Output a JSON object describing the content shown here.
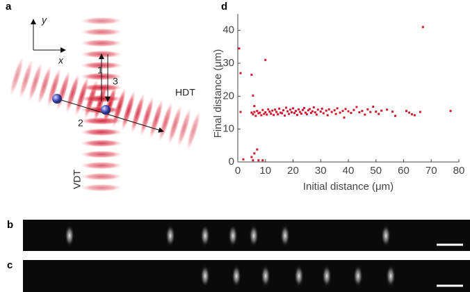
{
  "panels": {
    "a": {
      "label": "a",
      "y_axis": "y",
      "x_axis": "x",
      "arrow_1": "1",
      "arrow_2": "2",
      "arrow_3": "3",
      "horizontal_trap": "HDT",
      "vertical_trap": "VDT"
    },
    "b": {
      "label": "b"
    },
    "c": {
      "label": "c"
    },
    "d": {
      "label": "d"
    }
  },
  "chart_data": {
    "type": "scatter",
    "xlabel": "Initial distance (μm)",
    "ylabel": "Final distance (μm)",
    "color": "#d0182f",
    "x": [
      5,
      5.5,
      6,
      6.5,
      7,
      7.5,
      8,
      8.5,
      9,
      9.5,
      10,
      10.5,
      11,
      11.5,
      12,
      12.5,
      13,
      13.5,
      14,
      14.5,
      15,
      15.5,
      16,
      16.5,
      17,
      17.5,
      18,
      18.5,
      19,
      19.5,
      20,
      20.5,
      21,
      21.5,
      22,
      22.5,
      23,
      23.5,
      24,
      24.5,
      25,
      25.5,
      26,
      26.5,
      27,
      27.5,
      28,
      28.5,
      29,
      30,
      30.5,
      31,
      32,
      32.5,
      33,
      34,
      35,
      35.5,
      36,
      37,
      38,
      38.5,
      39,
      40,
      41,
      42,
      43,
      44,
      45,
      46,
      47,
      48,
      49,
      50,
      51,
      52,
      54,
      56,
      57,
      61,
      62,
      63,
      66,
      64,
      0.5,
      1,
      5,
      5.5,
      6,
      10,
      67,
      77,
      1,
      2,
      5,
      5.5,
      7,
      7.5,
      9,
      6
    ],
    "values": [
      15,
      14.5,
      15.2,
      14,
      15.5,
      14.8,
      15,
      14.2,
      15.8,
      14.6,
      15.1,
      14.4,
      16,
      15.3,
      14.7,
      15.6,
      14.3,
      15.9,
      15.2,
      14.5,
      16.2,
      15,
      14.8,
      15.7,
      14.1,
      16.5,
      15.4,
      14.6,
      15.9,
      15.1,
      16.3,
      14.9,
      15.5,
      14.3,
      16,
      15.2,
      14.7,
      15.8,
      16.4,
      15,
      14.5,
      15.7,
      16.1,
      14.9,
      15.4,
      16.6,
      15.1,
      14.4,
      15.9,
      15.3,
      16.2,
      14.8,
      15.6,
      14.2,
      16,
      15.2,
      15.7,
      14.6,
      16.3,
      15,
      15.5,
      13.5,
      16.1,
      15.4,
      14.9,
      15.8,
      16.7,
      15.1,
      15.5,
      14.4,
      16,
      15.2,
      16.8,
      15.3,
      14.6,
      15.6,
      15.9,
      15.3,
      14,
      15.5,
      15,
      14.5,
      15.2,
      14.2,
      34.5,
      27,
      26.5,
      20.2,
      17,
      31,
      41,
      15.5,
      15.2,
      0.8,
      1.5,
      0.5,
      3.8,
      0.5,
      0.5,
      2.6
    ],
    "xlim": [
      0,
      80
    ],
    "ylim": [
      0,
      45
    ],
    "xticks": [
      0,
      10,
      20,
      30,
      40,
      50,
      60,
      70,
      80
    ],
    "yticks": [
      0,
      10,
      20,
      30,
      40
    ]
  }
}
